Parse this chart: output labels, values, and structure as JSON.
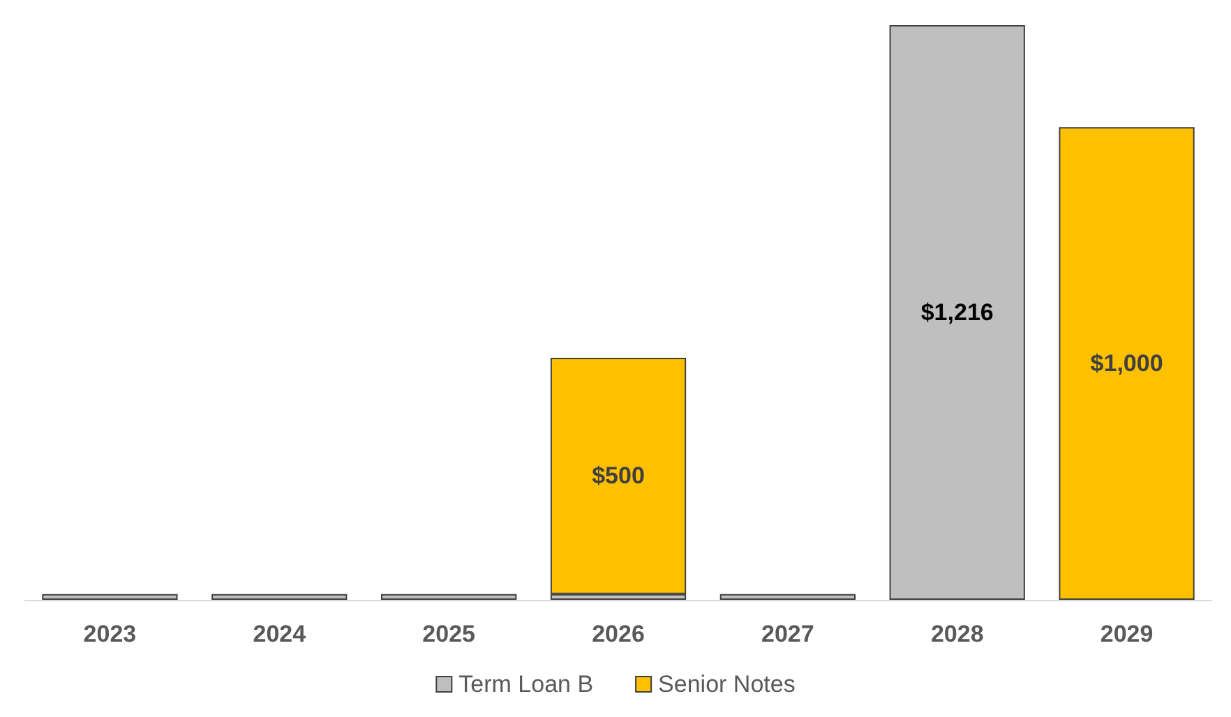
{
  "chart_data": {
    "type": "bar",
    "stacked": true,
    "categories": [
      "2023",
      "2024",
      "2025",
      "2026",
      "2027",
      "2028",
      "2029"
    ],
    "series": [
      {
        "name": "Term Loan B",
        "color": "#bfbfbf",
        "values": [
          12,
          12,
          12,
          12,
          12,
          1216,
          null
        ],
        "value_labels": [
          null,
          null,
          null,
          null,
          null,
          "$1,216",
          null
        ]
      },
      {
        "name": "Senior Notes",
        "color": "#ffc000",
        "values": [
          null,
          null,
          null,
          500,
          null,
          null,
          1000
        ],
        "value_labels": [
          null,
          null,
          null,
          "$500",
          null,
          null,
          "$1,000"
        ]
      }
    ],
    "legend": "bottom",
    "tick_labels": "x"
  }
}
